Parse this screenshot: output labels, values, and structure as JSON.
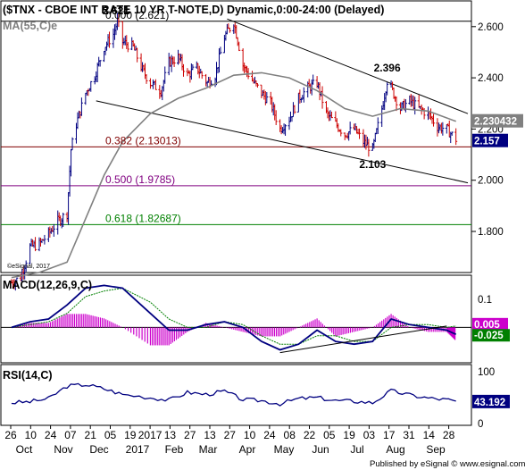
{
  "header": {
    "title": "($TNX - CBOE INT RATE 10 YR T-NOTE,D) Dynamic,0:00-24:00 (Delayed)",
    "ma_label": "MA(55,C)e"
  },
  "price_panel": {
    "ylim": [
      1.65,
      2.69
    ],
    "y_ticks": [
      2.6,
      2.4,
      2.2,
      2.0,
      1.8
    ],
    "y_tick_labels": [
      "2.600",
      "2.400",
      "2.200",
      "2.000",
      "1.800"
    ],
    "last_price_label": "2.157",
    "last_price": 2.157,
    "ma_value_label": "2.230432",
    "ma_value": 2.2304,
    "annotations": [
      {
        "text": "2.621",
        "date": "2016-12-14",
        "value": 2.621
      },
      {
        "text": "2.396",
        "date": "2017-07-07",
        "value": 2.396
      },
      {
        "text": "2.103",
        "date": "2017-06-26",
        "value": 2.103
      }
    ],
    "fib_levels": [
      {
        "label": "0.000 (2.621)",
        "value": 2.621,
        "color": "#000000"
      },
      {
        "label": "0.382 (2.13013)",
        "value": 2.13013,
        "color": "#800000"
      },
      {
        "label": "0.500 (1.9785)",
        "value": 1.9785,
        "color": "#800080"
      },
      {
        "label": "0.618 (1.82687)",
        "value": 1.82687,
        "color": "#008000"
      }
    ],
    "channel_lines": [
      {
        "points": [
          [
            "2017-03-08",
            2.63
          ],
          [
            "2017-09-06",
            2.26
          ]
        ]
      },
      {
        "points": [
          [
            "2016-11-29",
            2.31
          ],
          [
            "2017-09-06",
            1.99
          ]
        ]
      }
    ],
    "watermark": "©eSignal, 2017",
    "colors": {
      "up": "#000080",
      "down": "#cc0000",
      "ma": "#808080"
    }
  },
  "chart_data": {
    "type": "line",
    "title": "($TNX - CBOE INT RATE 10 YR T-NOTE,D) Dynamic,0:00-24:00 (Delayed)",
    "x_tick_labels": [
      "26",
      "10",
      "24",
      "07",
      "21",
      "05",
      "19",
      "2017",
      "13",
      "27",
      "13",
      "27",
      "10",
      "24",
      "08",
      "22",
      "05",
      "19",
      "03",
      "17",
      "31",
      "14",
      "28"
    ],
    "x_month_labels": [
      "Oct",
      "Nov",
      "Dec",
      "2017",
      "Feb",
      "Mar",
      "Apr",
      "May",
      "Jun",
      "Jul",
      "Aug",
      "Sep"
    ],
    "series": [
      {
        "name": "$TNX",
        "x": [
          "2016-09-26",
          "2016-10-03",
          "2016-10-10",
          "2016-10-17",
          "2016-10-24",
          "2016-10-31",
          "2016-11-07",
          "2016-11-10",
          "2016-11-14",
          "2016-11-21",
          "2016-11-28",
          "2016-12-05",
          "2016-12-12",
          "2016-12-15",
          "2016-12-19",
          "2016-12-27",
          "2017-01-03",
          "2017-01-09",
          "2017-01-17",
          "2017-01-23",
          "2017-01-30",
          "2017-02-06",
          "2017-02-13",
          "2017-02-21",
          "2017-02-27",
          "2017-03-06",
          "2017-03-13",
          "2017-03-20",
          "2017-03-27",
          "2017-04-03",
          "2017-04-10",
          "2017-04-17",
          "2017-04-24",
          "2017-05-01",
          "2017-05-08",
          "2017-05-15",
          "2017-05-22",
          "2017-05-29",
          "2017-06-05",
          "2017-06-12",
          "2017-06-19",
          "2017-06-26",
          "2017-07-03",
          "2017-07-07",
          "2017-07-10",
          "2017-07-17",
          "2017-07-24",
          "2017-07-31",
          "2017-08-07",
          "2017-08-14",
          "2017-08-21",
          "2017-08-28"
        ],
        "values": [
          1.6,
          1.62,
          1.74,
          1.75,
          1.79,
          1.84,
          1.87,
          2.12,
          2.22,
          2.34,
          2.41,
          2.52,
          2.57,
          2.62,
          2.54,
          2.52,
          2.43,
          2.38,
          2.35,
          2.46,
          2.48,
          2.41,
          2.44,
          2.38,
          2.41,
          2.56,
          2.62,
          2.45,
          2.39,
          2.34,
          2.3,
          2.2,
          2.24,
          2.32,
          2.36,
          2.38,
          2.26,
          2.22,
          2.18,
          2.2,
          2.15,
          2.12,
          2.28,
          2.39,
          2.36,
          2.28,
          2.31,
          2.28,
          2.26,
          2.21,
          2.2,
          2.16
        ]
      },
      {
        "name": "MA(55,C)e",
        "x": [
          "2016-09-26",
          "2016-10-17",
          "2016-11-07",
          "2016-11-21",
          "2016-12-05",
          "2016-12-19",
          "2017-01-09",
          "2017-01-30",
          "2017-02-20",
          "2017-03-13",
          "2017-04-03",
          "2017-04-24",
          "2017-05-15",
          "2017-06-05",
          "2017-06-26",
          "2017-07-17",
          "2017-08-07",
          "2017-08-28"
        ],
        "values": [
          1.62,
          1.64,
          1.68,
          1.85,
          2.02,
          2.15,
          2.26,
          2.32,
          2.36,
          2.41,
          2.42,
          2.4,
          2.35,
          2.28,
          2.25,
          2.28,
          2.27,
          2.23
        ]
      }
    ],
    "xlabel": "",
    "ylabel": "",
    "ylim": [
      1.65,
      2.69
    ]
  },
  "macd_panel": {
    "label": "MACD(12,26,9,C)",
    "ylim": [
      -0.12,
      0.18
    ],
    "y_tick_labels": [
      "0.1"
    ],
    "y_ticks": [
      0.1
    ],
    "signal_value_label": "0.005",
    "macd_value_label": "-0.025",
    "macd_value": -0.025,
    "signal_value": 0.005,
    "x": [
      "2016-09-26",
      "2016-10-10",
      "2016-10-24",
      "2016-11-07",
      "2016-11-21",
      "2016-12-05",
      "2016-12-19",
      "2017-01-09",
      "2017-01-23",
      "2017-02-06",
      "2017-02-20",
      "2017-03-06",
      "2017-03-20",
      "2017-04-03",
      "2017-04-17",
      "2017-05-01",
      "2017-05-15",
      "2017-05-29",
      "2017-06-12",
      "2017-06-26",
      "2017-07-10",
      "2017-07-24",
      "2017-08-07",
      "2017-08-21",
      "2017-08-28"
    ],
    "macd": [
      0.0,
      0.02,
      0.03,
      0.08,
      0.14,
      0.15,
      0.14,
      0.05,
      -0.01,
      -0.01,
      0.01,
      0.02,
      0.0,
      -0.05,
      -0.08,
      -0.06,
      -0.01,
      -0.05,
      -0.06,
      -0.05,
      0.03,
      0.01,
      0.0,
      -0.01,
      -0.025
    ],
    "signal": [
      0.0,
      0.01,
      0.02,
      0.05,
      0.11,
      0.13,
      0.14,
      0.09,
      0.03,
      0.0,
      0.0,
      0.02,
      0.01,
      -0.03,
      -0.06,
      -0.06,
      -0.03,
      -0.03,
      -0.05,
      -0.05,
      0.0,
      0.01,
      0.01,
      0.0,
      0.005
    ],
    "trendline": [
      [
        "2017-04-17",
        -0.09
      ],
      [
        "2017-08-21",
        0.005
      ]
    ],
    "colors": {
      "macd": "#000080",
      "signal": "#008000",
      "hist": "#cc00cc",
      "value_bg": "#008000",
      "signal_bg": "#cc00cc"
    }
  },
  "rsi_panel": {
    "label": "RSI(14,C)",
    "ylim": [
      0,
      110
    ],
    "y_ticks": [
      100,
      0
    ],
    "y_tick_labels": [
      "100",
      "0"
    ],
    "value_label": "43.192",
    "value": 43.192,
    "x": [
      "2016-09-26",
      "2016-10-10",
      "2016-10-24",
      "2016-11-07",
      "2016-11-21",
      "2016-12-05",
      "2016-12-19",
      "2017-01-09",
      "2017-01-23",
      "2017-02-06",
      "2017-02-20",
      "2017-03-06",
      "2017-03-20",
      "2017-04-03",
      "2017-04-17",
      "2017-05-01",
      "2017-05-15",
      "2017-05-29",
      "2017-06-12",
      "2017-06-26",
      "2017-07-10",
      "2017-07-24",
      "2017-08-07",
      "2017-08-21",
      "2017-08-28"
    ],
    "values": [
      40,
      42,
      48,
      72,
      75,
      67,
      56,
      50,
      45,
      60,
      56,
      62,
      46,
      44,
      38,
      48,
      50,
      44,
      43,
      40,
      63,
      55,
      49,
      46,
      43.19
    ],
    "colors": {
      "line": "#000080",
      "value_bg": "#000080"
    }
  },
  "footer": {
    "text": "Published by eSignal © www.esignal.com"
  }
}
